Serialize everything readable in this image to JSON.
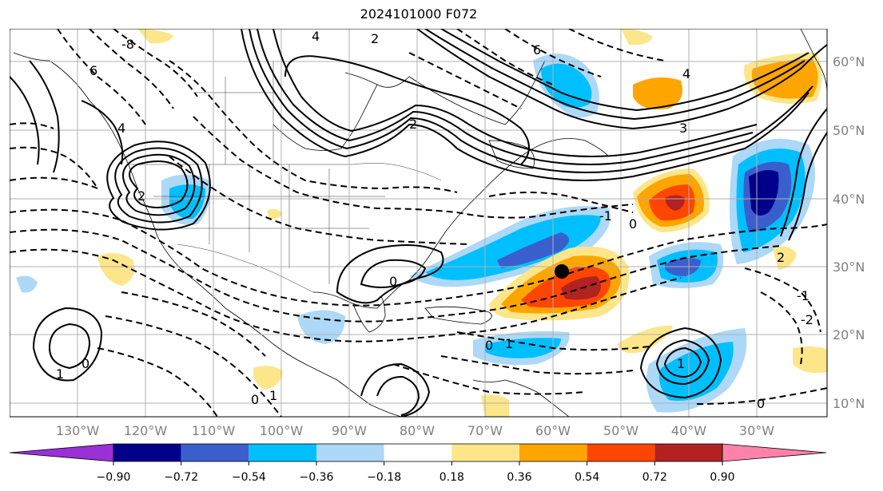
{
  "title": "2024101000 F072",
  "map": {
    "lat_labels": [
      "60°N",
      "50°N",
      "40°N",
      "30°N",
      "20°N",
      "10°N"
    ],
    "lon_labels": [
      "130°W",
      "120°W",
      "110°W",
      "100°W",
      "90°W",
      "80°W",
      "70°W",
      "60°W",
      "50°W",
      "40°W",
      "30°W"
    ],
    "contour_labels": [
      "-8",
      "4",
      "2",
      "6",
      "4",
      "6",
      "4",
      "2",
      "3",
      "2",
      "-1",
      "0",
      "0",
      "1",
      "0",
      "1",
      "0",
      "1",
      "0",
      "1",
      "2",
      "-1",
      "-2",
      "0"
    ],
    "marker": "storm-position"
  },
  "colorbar": {
    "ticks": [
      "−0.90",
      "−0.72",
      "−0.54",
      "−0.36",
      "−0.18",
      "0.18",
      "0.36",
      "0.54",
      "0.72",
      "0.90"
    ],
    "colors": [
      "#9b30d6",
      "#00008b",
      "#3a5fcd",
      "#00bfff",
      "#add8f7",
      "#ffffff",
      "#fde68a",
      "#ffa500",
      "#ff4500",
      "#b22222",
      "#ff82ab"
    ]
  }
}
